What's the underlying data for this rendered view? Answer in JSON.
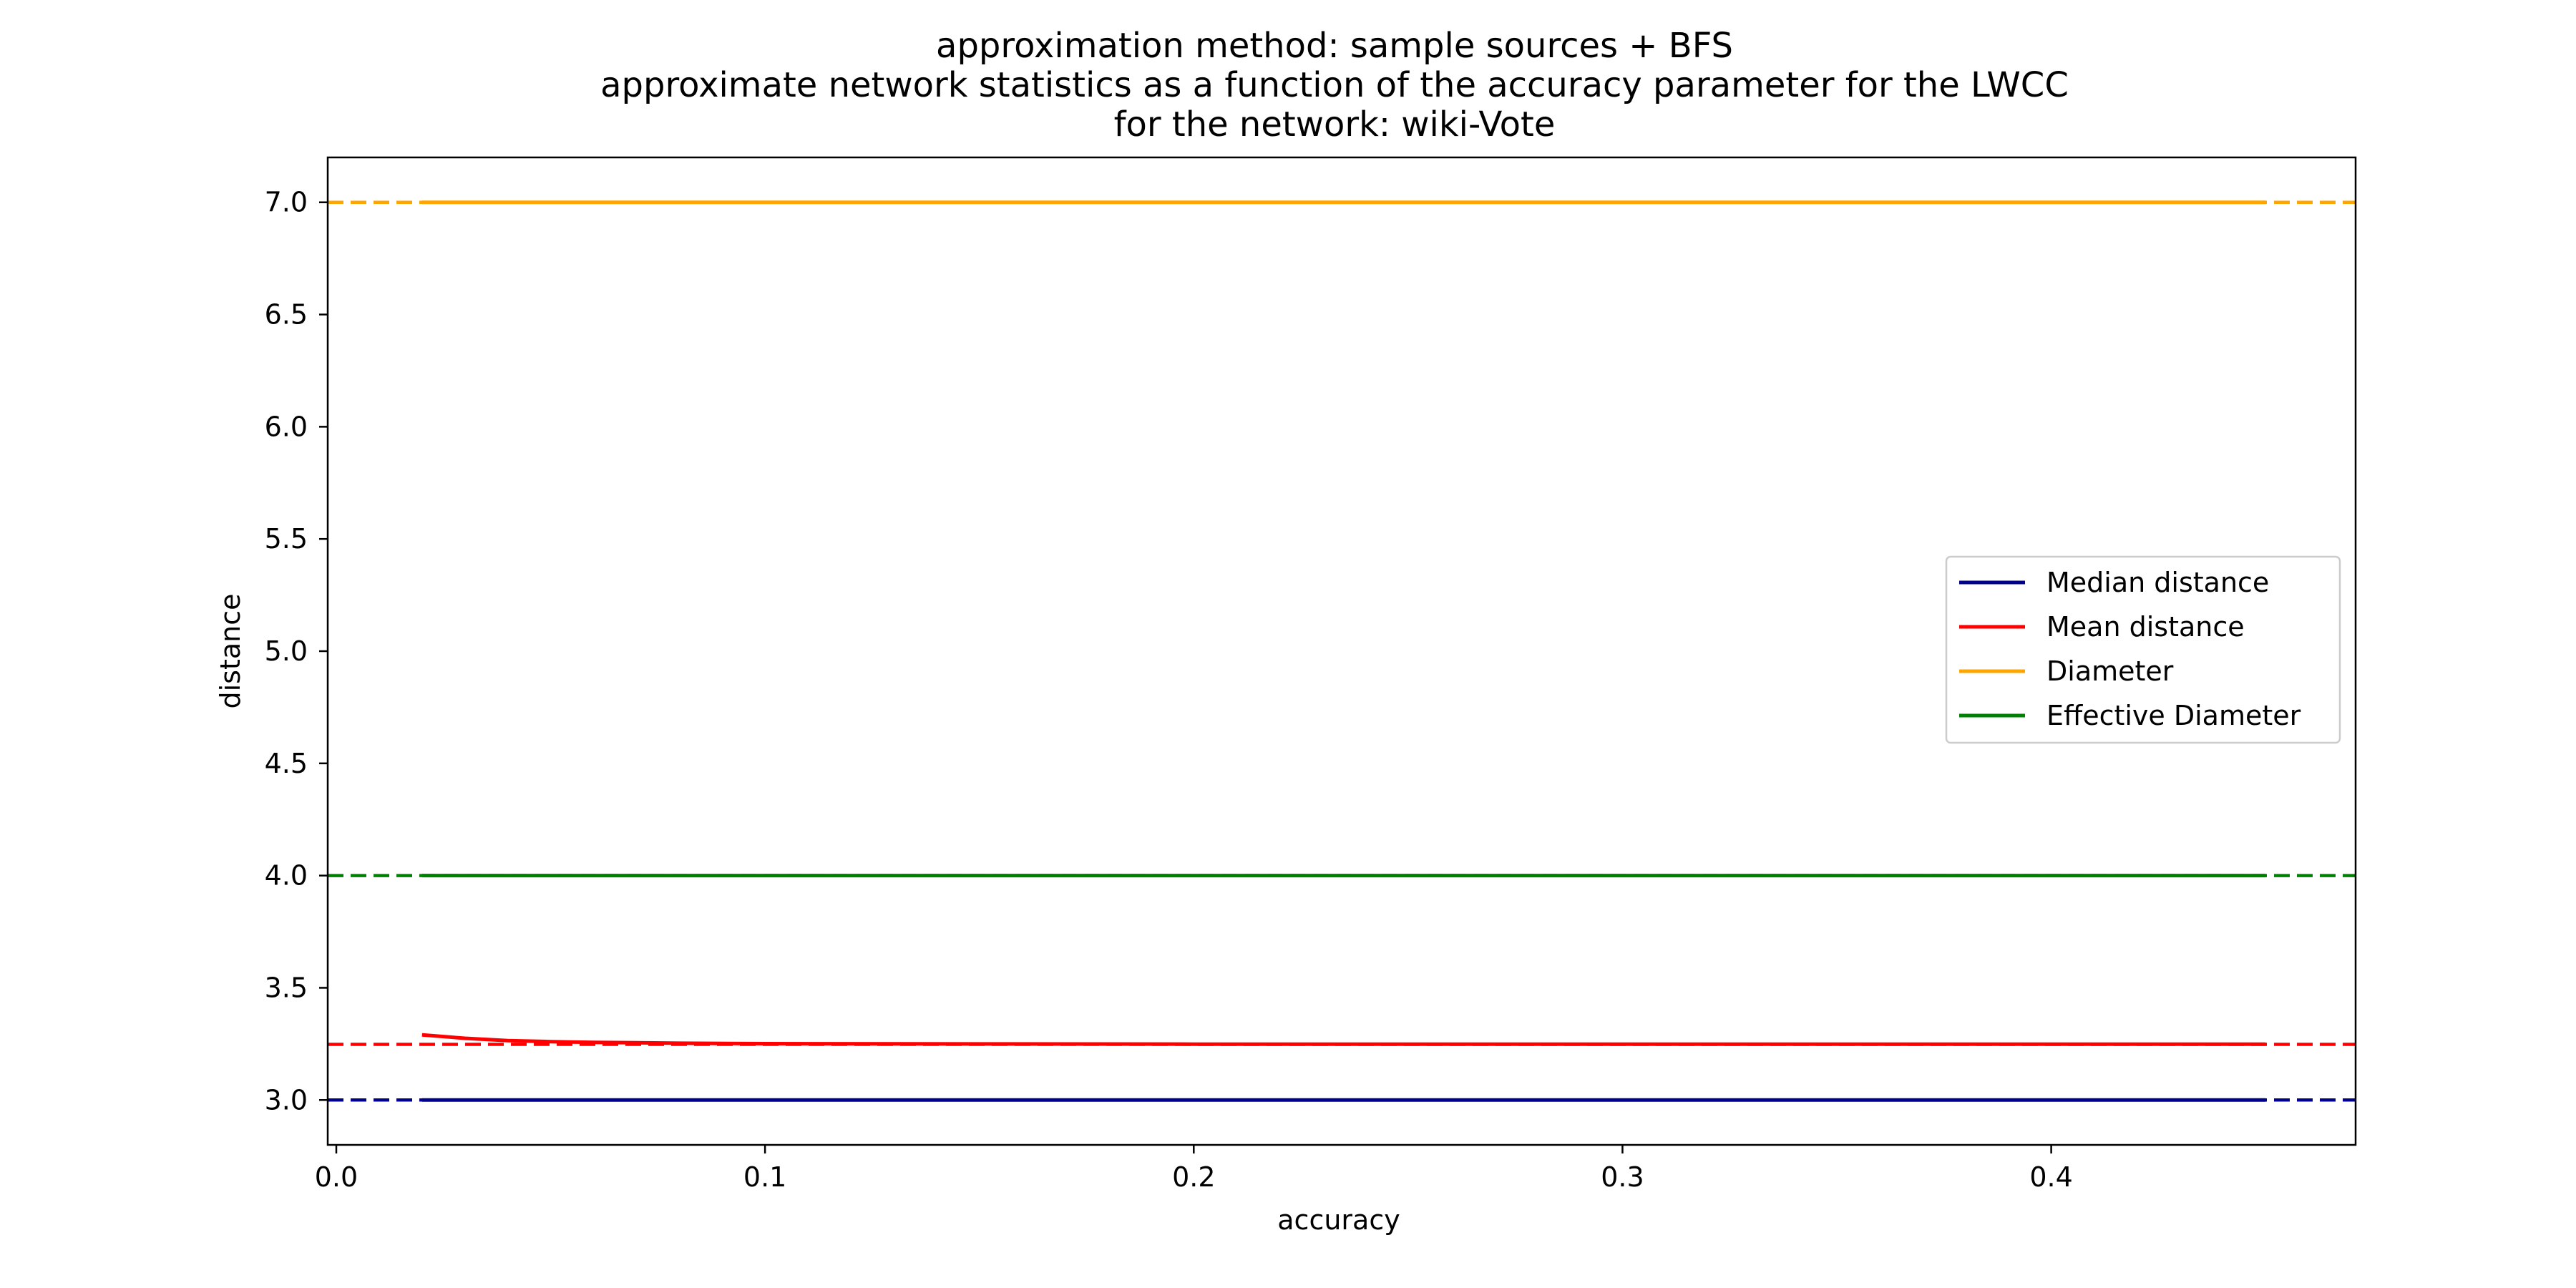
{
  "chart_data": {
    "type": "line",
    "title_lines": [
      "approximation method: sample sources + BFS",
      "approximate network statistics as a function of the accuracy parameter for  the LWCC",
      "for the network: wiki-Vote"
    ],
    "xlabel": "accuracy",
    "ylabel": "distance",
    "xlim": [
      -0.002,
      0.471
    ],
    "ylim": [
      2.8,
      7.2
    ],
    "xticks": [
      0.0,
      0.1,
      0.2,
      0.3,
      0.4
    ],
    "xtick_labels": [
      "0.0",
      "0.1",
      "0.2",
      "0.3",
      "0.4"
    ],
    "yticks": [
      3.0,
      3.5,
      4.0,
      4.5,
      5.0,
      5.5,
      6.0,
      6.5,
      7.0
    ],
    "ytick_labels": [
      "3.0",
      "3.5",
      "4.0",
      "4.5",
      "5.0",
      "5.5",
      "6.0",
      "6.5",
      "7.0"
    ],
    "grid": false,
    "legend_position": "center-right",
    "series": [
      {
        "name": "Median distance",
        "color": "#00008b",
        "x": [
          0.02,
          0.05,
          0.1,
          0.15,
          0.2,
          0.25,
          0.3,
          0.35,
          0.4,
          0.45
        ],
        "y": [
          3.0,
          3.0,
          3.0,
          3.0,
          3.0,
          3.0,
          3.0,
          3.0,
          3.0,
          3.0
        ],
        "exact_value": 3.0
      },
      {
        "name": "Mean distance",
        "color": "#ff0000",
        "x": [
          0.02,
          0.03,
          0.04,
          0.05,
          0.06,
          0.08,
          0.1,
          0.15,
          0.2,
          0.25,
          0.3,
          0.35,
          0.4,
          0.45
        ],
        "y": [
          3.29,
          3.275,
          3.265,
          3.26,
          3.257,
          3.253,
          3.251,
          3.25,
          3.249,
          3.249,
          3.249,
          3.249,
          3.249,
          3.249
        ],
        "exact_value": 3.248
      },
      {
        "name": "Diameter",
        "color": "#ffa500",
        "x": [
          0.02,
          0.05,
          0.1,
          0.15,
          0.2,
          0.25,
          0.3,
          0.35,
          0.4,
          0.45
        ],
        "y": [
          7.0,
          7.0,
          7.0,
          7.0,
          7.0,
          7.0,
          7.0,
          7.0,
          7.0,
          7.0
        ],
        "exact_value": 7.0
      },
      {
        "name": "Effective Diameter",
        "color": "#008000",
        "x": [
          0.02,
          0.05,
          0.1,
          0.15,
          0.2,
          0.25,
          0.3,
          0.35,
          0.4,
          0.45
        ],
        "y": [
          4.0,
          4.0,
          4.0,
          4.0,
          4.0,
          4.0,
          4.0,
          4.0,
          4.0,
          4.0
        ],
        "exact_value": 4.0
      }
    ]
  }
}
